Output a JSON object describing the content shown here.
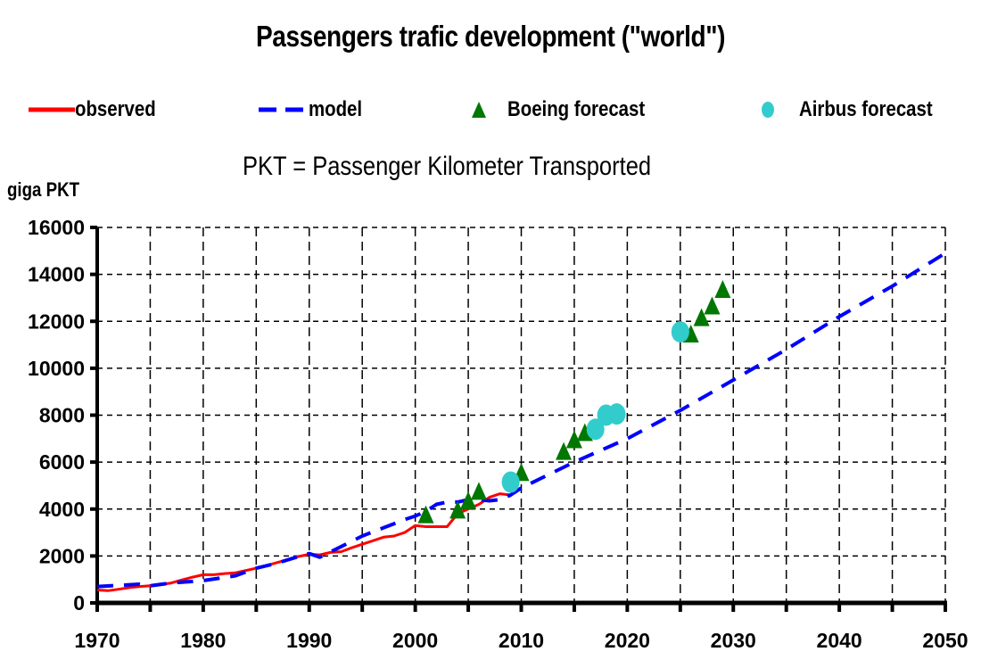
{
  "chart_data": {
    "type": "line",
    "title": "Passengers trafic development (\"world\")",
    "subtitle": "PKT = Passenger Kilometer Transported",
    "xlabel": "",
    "ylabel": "giga PKT",
    "xlim": [
      1970,
      2050
    ],
    "ylim": [
      0,
      16000
    ],
    "xticks": [
      1970,
      1980,
      1990,
      2000,
      2010,
      2020,
      2030,
      2040,
      2050
    ],
    "xtick_labels": [
      "1970",
      "1980",
      "1990",
      "2000",
      "2010",
      "2020",
      "2030",
      "2040",
      "2050"
    ],
    "x_gridlines": [
      1970,
      1975,
      1980,
      1985,
      1990,
      1995,
      2000,
      2005,
      2010,
      2015,
      2020,
      2025,
      2030,
      2035,
      2040,
      2045,
      2050
    ],
    "yticks": [
      0,
      2000,
      4000,
      6000,
      8000,
      10000,
      12000,
      14000,
      16000
    ],
    "ytick_labels": [
      "0",
      "2000",
      "4000",
      "6000",
      "8000",
      "10000",
      "12000",
      "14000",
      "16000"
    ],
    "grid": true,
    "legend_position": "top",
    "series": [
      {
        "name": "observed",
        "style": "solid-line",
        "color": "#ff0000",
        "x": [
          1970,
          1971,
          1972,
          1973,
          1974,
          1975,
          1976,
          1977,
          1978,
          1979,
          1980,
          1981,
          1982,
          1983,
          1984,
          1985,
          1986,
          1987,
          1988,
          1989,
          1990,
          1991,
          1992,
          1993,
          1994,
          1995,
          1996,
          1997,
          1998,
          1999,
          2000,
          2001,
          2002,
          2003,
          2004,
          2005,
          2006,
          2007,
          2008,
          2009,
          2010
        ],
        "y": [
          550,
          520,
          580,
          650,
          700,
          730,
          780,
          850,
          980,
          1100,
          1200,
          1200,
          1250,
          1280,
          1380,
          1480,
          1600,
          1720,
          1850,
          1980,
          2070,
          2050,
          2150,
          2180,
          2350,
          2500,
          2650,
          2800,
          2850,
          3000,
          3300,
          3250,
          3250,
          3250,
          3800,
          4000,
          4200,
          4500,
          4650,
          4600,
          4900
        ]
      },
      {
        "name": "model",
        "style": "dashed-line",
        "color": "#0000ff",
        "x": [
          1970,
          1972,
          1974,
          1975,
          1977,
          1980,
          1983,
          1985,
          1987,
          1989,
          1990,
          1991,
          1993,
          1995,
          1997,
          1999,
          2000,
          2001,
          2002,
          2003,
          2004,
          2005,
          2006,
          2007,
          2008,
          2009,
          2010,
          2015,
          2020,
          2025,
          2030,
          2035,
          2040,
          2045,
          2050
        ],
        "y": [
          700,
          750,
          800,
          730,
          850,
          950,
          1150,
          1480,
          1700,
          1980,
          2100,
          1950,
          2400,
          2850,
          3200,
          3550,
          3700,
          3900,
          4200,
          4300,
          4300,
          4400,
          4400,
          4350,
          4400,
          4600,
          4900,
          6000,
          7000,
          8200,
          9500,
          10800,
          12200,
          13500,
          14900
        ]
      },
      {
        "name": "Boeing forecast",
        "style": "triangle-marker",
        "color": "#007700",
        "x": [
          2001,
          2004,
          2005,
          2006,
          2010,
          2014,
          2015,
          2016,
          2026,
          2027,
          2028,
          2029
        ],
        "y": [
          3700,
          3900,
          4300,
          4700,
          5500,
          6400,
          6900,
          7200,
          11400,
          12100,
          12600,
          13300
        ]
      },
      {
        "name": "Airbus forecast",
        "style": "circle-marker",
        "color": "#33cccc",
        "x": [
          2009,
          2017,
          2018,
          2019,
          2025
        ],
        "y": [
          5150,
          7400,
          8000,
          8050,
          11550
        ]
      }
    ]
  },
  "legend": {
    "items": [
      {
        "label": "observed",
        "symbol": "solid-line-icon",
        "color": "#ff0000"
      },
      {
        "label": "model",
        "symbol": "dashed-line-icon",
        "color": "#0000ff"
      },
      {
        "label": "Boeing forecast",
        "symbol": "triangle-icon",
        "color": "#007700"
      },
      {
        "label": "Airbus forecast",
        "symbol": "circle-icon",
        "color": "#33cccc"
      }
    ]
  }
}
